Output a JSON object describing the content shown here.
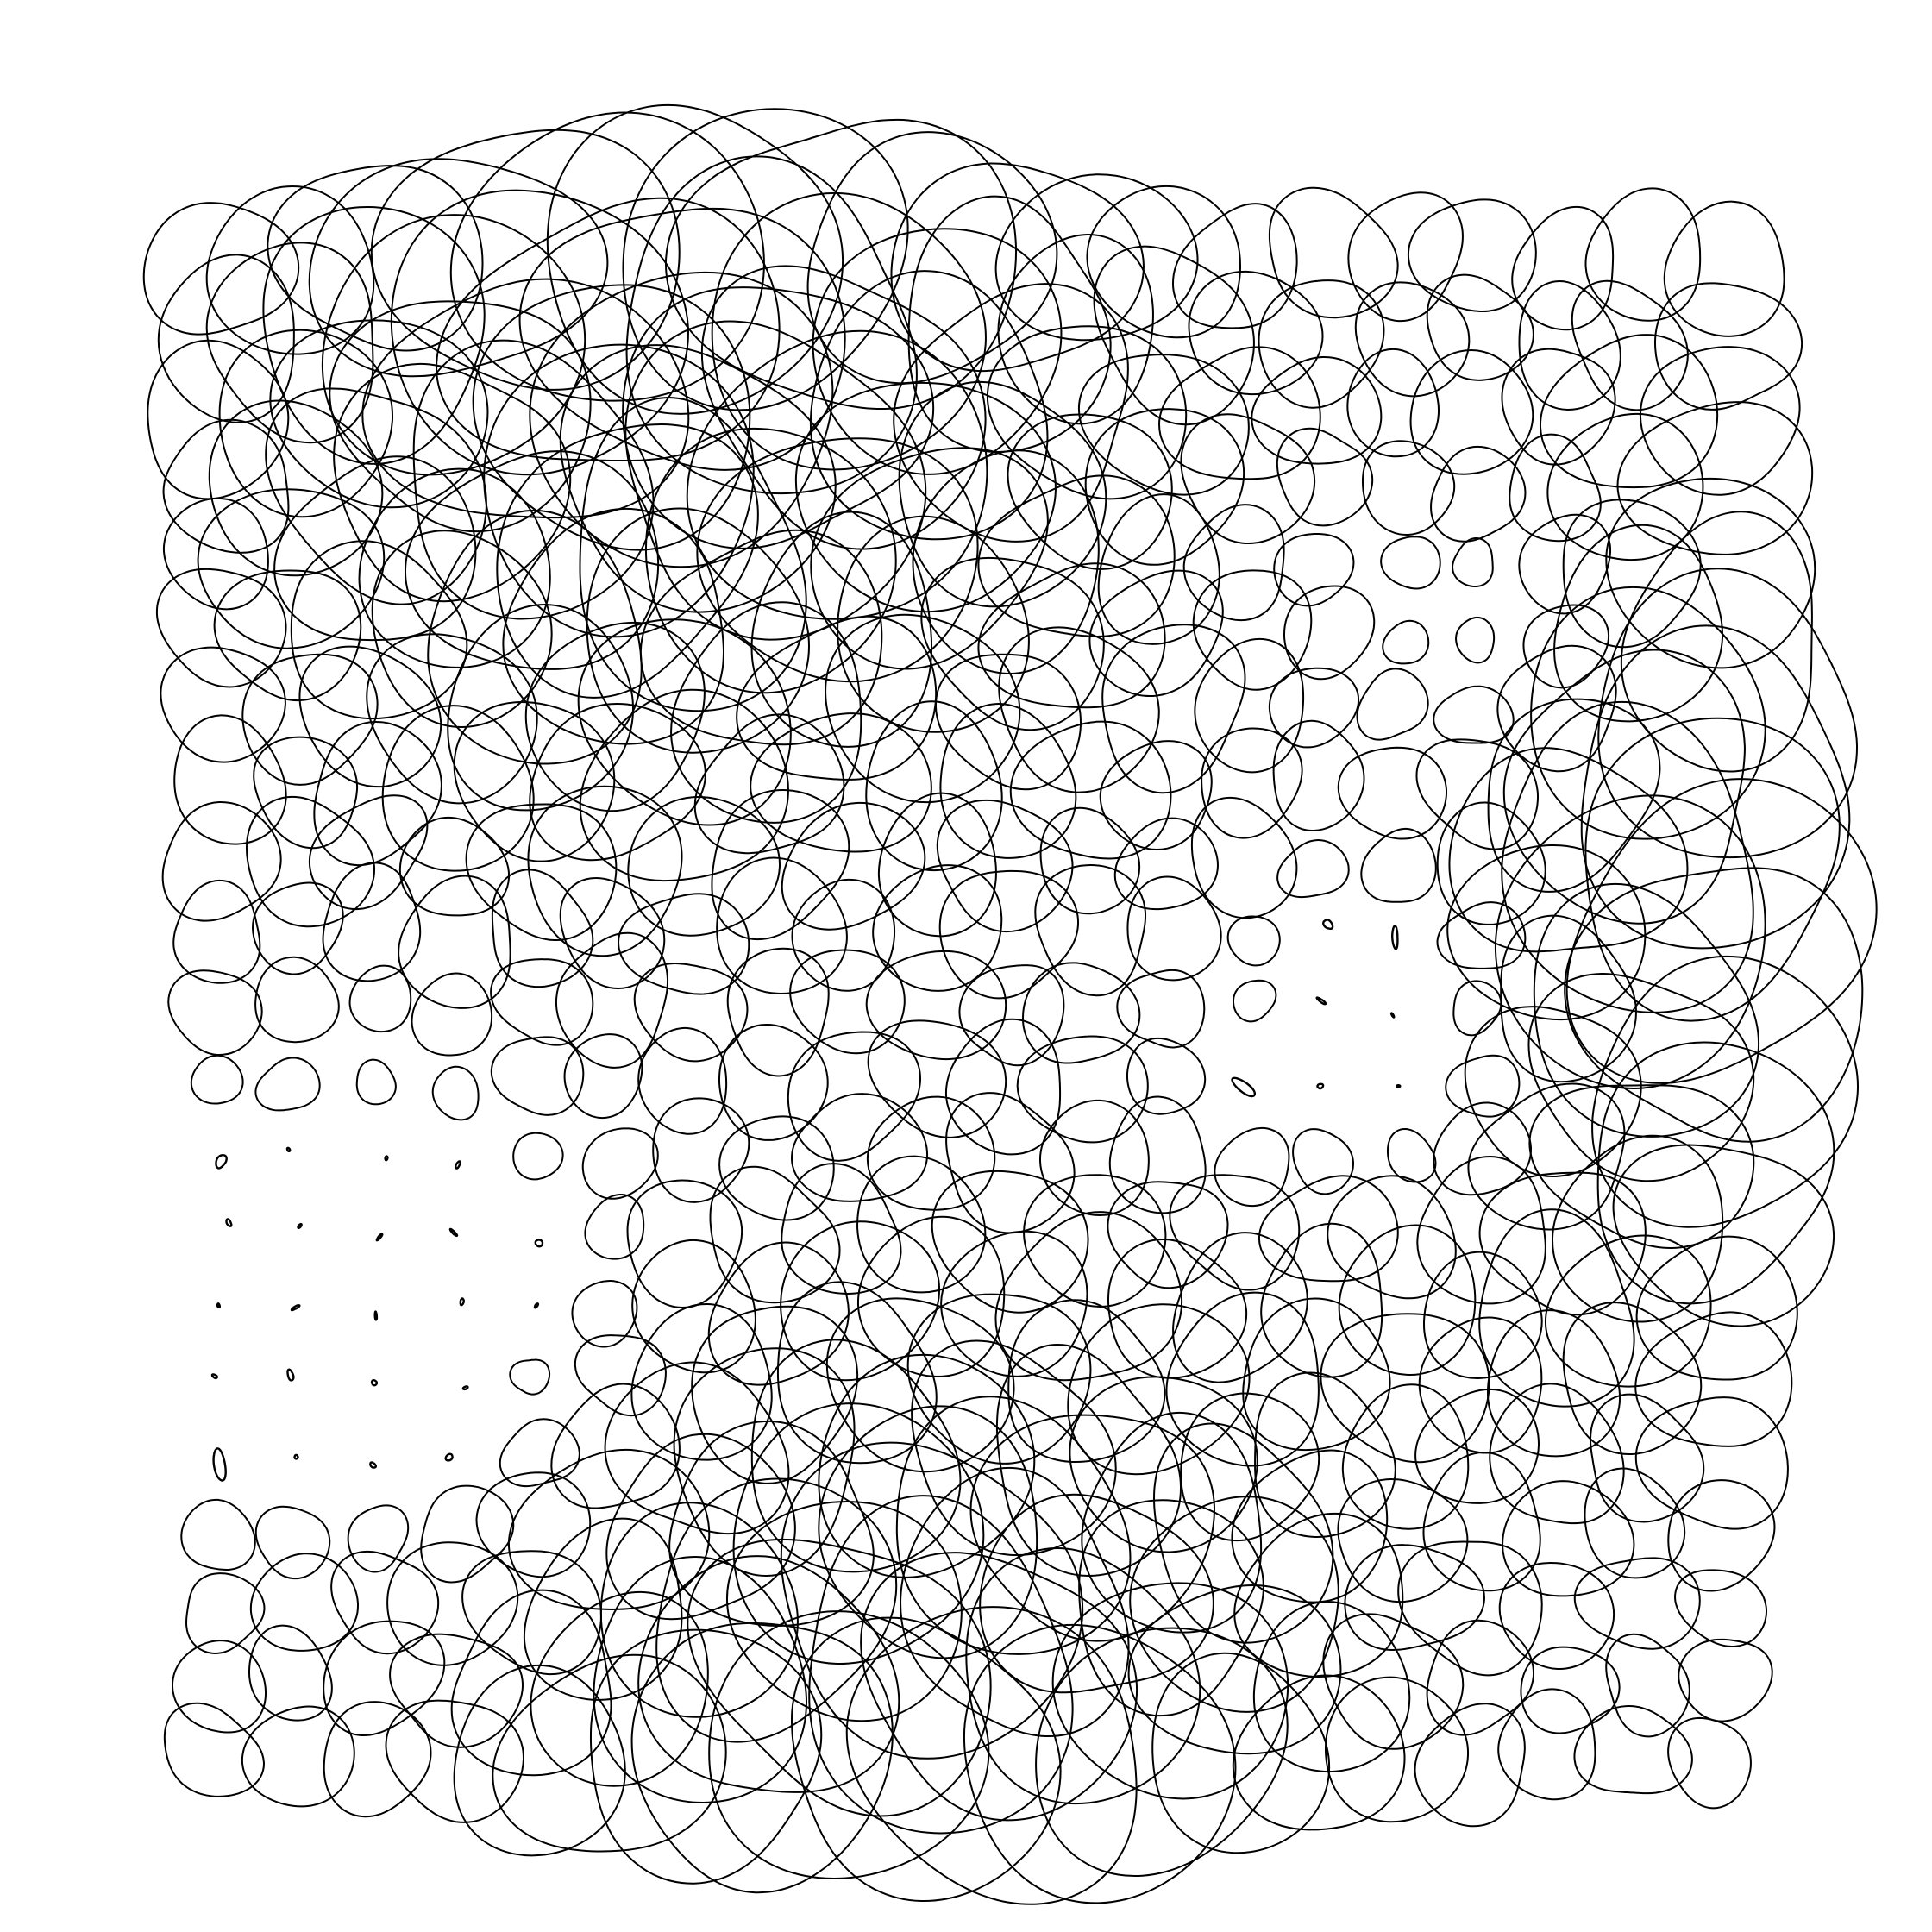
{
  "artwork": {
    "subject": "generative-pattern-of-hand-drawn-loops",
    "background_color": "#ffffff",
    "stroke_color": "#000000",
    "grid_columns": 20,
    "grid_rows": 21,
    "size_field_peaks": [
      {
        "col": 6,
        "row": 1,
        "strength": 1.0
      },
      {
        "col": 19,
        "row": 8,
        "strength": 1.0
      },
      {
        "col": 9,
        "row": 20,
        "strength": 0.85
      }
    ],
    "size_field_troughs": [
      {
        "col": 2,
        "row": 14,
        "strength": 1.0
      },
      {
        "col": 15,
        "row": 10,
        "strength": 1.0
      },
      {
        "col": 16,
        "row": 5,
        "strength": 0.8
      }
    ]
  }
}
